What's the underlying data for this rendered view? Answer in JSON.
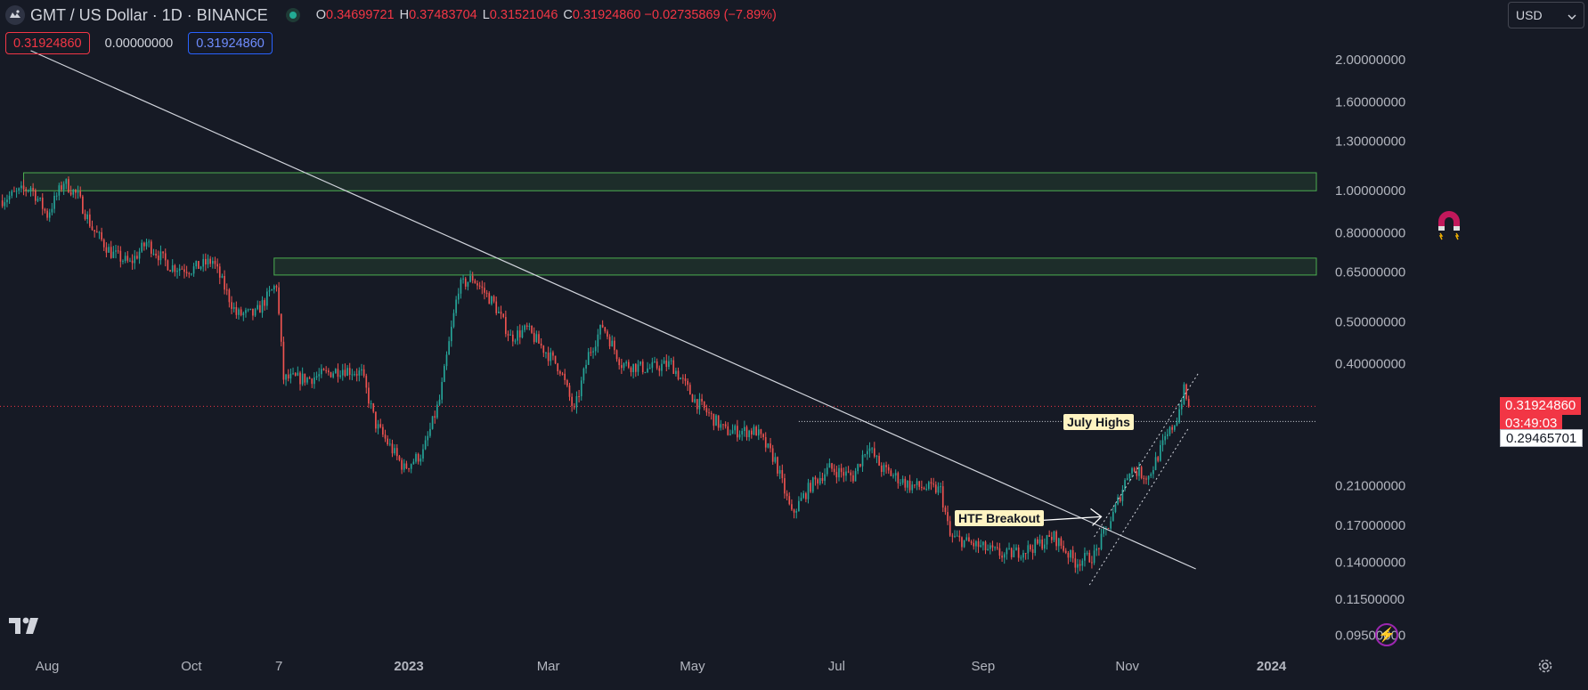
{
  "header": {
    "symbol_title": "GMT / US Dollar · 1D · BINANCE",
    "ohlc": [
      {
        "key": "O",
        "value": "0.34699721"
      },
      {
        "key": "H",
        "value": "0.37483704"
      },
      {
        "key": "L",
        "value": "0.31521046"
      },
      {
        "key": "C",
        "value": "0.31924860 −0.02735869 (−7.89%)"
      }
    ],
    "indicator_values": [
      "0.31924860",
      "0.00000000",
      "0.31924860"
    ]
  },
  "currency_select": "USD",
  "price_axis": {
    "ticks": [
      "2.00000000",
      "1.60000000",
      "1.30000000",
      "1.00000000",
      "0.80000000",
      "0.65000000",
      "0.50000000",
      "0.40000000",
      "0.21000000",
      "0.17000000",
      "0.14000000",
      "0.11500000",
      "0.09500000"
    ],
    "last_price": "0.31924860",
    "countdown": "03:49:03",
    "crosshair_price": "0.29465701"
  },
  "time_axis": {
    "ticks": [
      "Aug",
      "Oct",
      "7",
      "2023",
      "Mar",
      "May",
      "Jul",
      "Sep",
      "Nov",
      "2024"
    ]
  },
  "annotations": {
    "july_highs": "July Highs",
    "htf_breakout": "HTF Breakout"
  },
  "colors": {
    "background": "#161a25",
    "up": "#26a69a",
    "down": "#ef5350",
    "zone": "#4caf50",
    "trendline": "#d1d4dc",
    "last_price": "#f23645"
  },
  "icons": [
    "tradingview-logo-icon",
    "magnet-icon",
    "lightning-icon",
    "settings-gear-icon",
    "chevron-down-icon",
    "gmt-coin-icon"
  ],
  "chart_data": {
    "type": "candlestick",
    "symbol": "GMT / US Dollar",
    "interval": "1D",
    "exchange": "BINANCE",
    "y_scale": "log",
    "ylim": [
      0.09,
      2.2
    ],
    "x_range": [
      "2022-07-12",
      "2024-01-20"
    ],
    "grid": false,
    "path_points": [
      [
        "2022-07-12",
        0.95
      ],
      [
        "2022-07-25",
        1.02
      ],
      [
        "2022-08-01",
        0.88
      ],
      [
        "2022-08-08",
        1.05
      ],
      [
        "2022-08-14",
        0.97
      ],
      [
        "2022-08-20",
        0.82
      ],
      [
        "2022-08-28",
        0.72
      ],
      [
        "2022-09-05",
        0.68
      ],
      [
        "2022-09-12",
        0.76
      ],
      [
        "2022-09-22",
        0.67
      ],
      [
        "2022-10-01",
        0.66
      ],
      [
        "2022-10-10",
        0.69
      ],
      [
        "2022-10-20",
        0.52
      ],
      [
        "2022-10-28",
        0.52
      ],
      [
        "2022-11-06",
        0.61
      ],
      [
        "2022-11-09",
        0.37
      ],
      [
        "2022-11-20",
        0.37
      ],
      [
        "2022-12-04",
        0.39
      ],
      [
        "2022-12-12",
        0.38
      ],
      [
        "2022-12-18",
        0.29
      ],
      [
        "2022-12-30",
        0.23
      ],
      [
        "2023-01-07",
        0.25
      ],
      [
        "2023-01-14",
        0.33
      ],
      [
        "2023-01-22",
        0.6
      ],
      [
        "2023-01-28",
        0.63
      ],
      [
        "2023-02-06",
        0.55
      ],
      [
        "2023-02-13",
        0.46
      ],
      [
        "2023-02-20",
        0.48
      ],
      [
        "2023-03-06",
        0.39
      ],
      [
        "2023-03-12",
        0.31
      ],
      [
        "2023-03-18",
        0.42
      ],
      [
        "2023-03-24",
        0.49
      ],
      [
        "2023-04-01",
        0.4
      ],
      [
        "2023-04-12",
        0.39
      ],
      [
        "2023-04-22",
        0.4
      ],
      [
        "2023-05-02",
        0.33
      ],
      [
        "2023-05-15",
        0.28
      ],
      [
        "2023-05-28",
        0.28
      ],
      [
        "2023-06-05",
        0.24
      ],
      [
        "2023-06-12",
        0.18
      ],
      [
        "2023-06-20",
        0.21
      ],
      [
        "2023-06-28",
        0.23
      ],
      [
        "2023-07-08",
        0.22
      ],
      [
        "2023-07-14",
        0.26
      ],
      [
        "2023-07-20",
        0.23
      ],
      [
        "2023-08-01",
        0.21
      ],
      [
        "2023-08-14",
        0.205
      ],
      [
        "2023-08-18",
        0.16
      ],
      [
        "2023-08-26",
        0.155
      ],
      [
        "2023-09-10",
        0.145
      ],
      [
        "2023-09-20",
        0.15
      ],
      [
        "2023-10-01",
        0.16
      ],
      [
        "2023-10-10",
        0.14
      ],
      [
        "2023-10-18",
        0.145
      ],
      [
        "2023-10-26",
        0.18
      ],
      [
        "2023-11-02",
        0.23
      ],
      [
        "2023-11-10",
        0.22
      ],
      [
        "2023-11-16",
        0.26
      ],
      [
        "2023-11-22",
        0.3
      ],
      [
        "2023-11-25",
        0.347
      ],
      [
        "2023-11-27",
        0.319
      ]
    ],
    "last_price": 0.3192486,
    "resistance_zones": [
      {
        "from": "2022-07-22",
        "to": "2024-01-20",
        "low": 1.0,
        "high": 1.1
      },
      {
        "from": "2022-11-05",
        "to": "2024-01-20",
        "low": 0.64,
        "high": 0.7
      }
    ],
    "trendline": {
      "from": [
        "2022-07-25",
        2.1
      ],
      "to": [
        "2023-11-30",
        0.135
      ]
    },
    "july_highs_level": {
      "from": "2023-06-15",
      "to": "2024-01-20",
      "price": 0.2947
    },
    "rising_channel": {
      "upper": {
        "from": [
          "2023-10-18",
          0.16
        ],
        "to": [
          "2023-12-01",
          0.38
        ]
      },
      "lower": {
        "from": [
          "2023-10-16",
          0.124
        ],
        "to": [
          "2023-11-27",
          0.285
        ]
      }
    },
    "breakout_arrow": {
      "from": [
        "2023-08-22",
        0.17
      ],
      "to": [
        "2023-10-21",
        0.178
      ]
    }
  }
}
